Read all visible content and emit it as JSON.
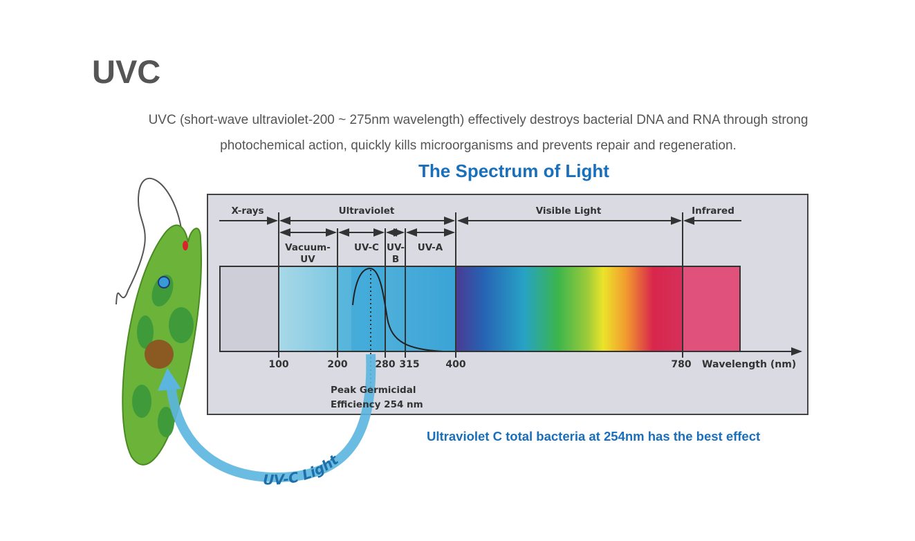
{
  "section": {
    "title": "UVC",
    "description_lines": [
      "UVC (short-wave ultraviolet-200 ~ 275nm wavelength) effectively destroys bacterial DNA and RNA through strong",
      "photochemical action, quickly kills microorganisms and prevents repair and regeneration."
    ]
  },
  "diagram": {
    "heading": "The Spectrum of Light",
    "bands": {
      "xrays": "X-rays",
      "ultraviolet": "Ultraviolet",
      "visible": "Visible Light",
      "infrared": "Infrared"
    },
    "uv_subbands": {
      "vacuum_1": "Vacuum-",
      "vacuum_2": "UV",
      "uvc": "UV-C",
      "uvb_1": "UV-",
      "uvb_2": "B",
      "uva": "UV-A"
    },
    "ticks": [
      "100",
      "200",
      "280",
      "315",
      "400",
      "780"
    ],
    "axis_label": "Wavelength (nm)",
    "peak_1": "Peak Germicidal",
    "peak_2": "Efficiency 254 nm",
    "arrow_label": "UV-C Light",
    "caption": "Ultraviolet C total bacteria at 254nm has the best effect",
    "colors": {
      "heading": "#1a6fbd",
      "text": "#555555",
      "panel": "#d9dae2"
    }
  }
}
